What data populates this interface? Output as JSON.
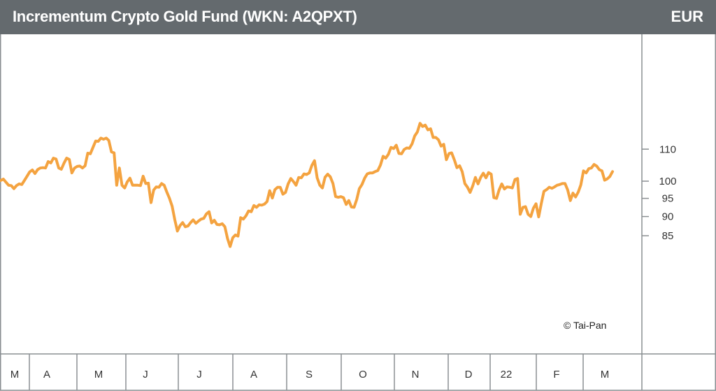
{
  "header": {
    "title": "Incrementum Crypto Gold Fund (WKN: A2QPXT)",
    "currency": "EUR"
  },
  "copyright": "© Tai-Pan",
  "colors": {
    "line": "#f4a340",
    "header": "#646a6e",
    "axis": "#8a8f92"
  },
  "chart_data": {
    "type": "line",
    "title": "Incrementum Crypto Gold Fund (WKN: A2QPXT)",
    "ylabel": "EUR",
    "y_scale": "log",
    "y_ticks": [
      85,
      90,
      95,
      100,
      110
    ],
    "ylim": [
      81,
      123
    ],
    "x_tick_labels": [
      "M",
      "A",
      "M",
      "J",
      "J",
      "A",
      "S",
      "O",
      "N",
      "D",
      "22",
      "F",
      "M"
    ],
    "grid": false,
    "series": [
      {
        "values": [
          100.2,
          100.6,
          99.7,
          98.8,
          98.7,
          97.8,
          98.7,
          99.2,
          99.0,
          100.2,
          101.5,
          102.8,
          103.4,
          102.3,
          103.5,
          104.0,
          104.1,
          104.0,
          106.0,
          105.6,
          107.1,
          106.8,
          104.0,
          103.6,
          105.5,
          107.1,
          106.7,
          102.5,
          104.0,
          104.5,
          104.6,
          104.0,
          104.7,
          108.7,
          108.5,
          110.6,
          112.7,
          112.6,
          113.7,
          113.3,
          113.7,
          112.9,
          109.1,
          108.8,
          98.8,
          104.0,
          98.8,
          98.0,
          99.8,
          100.9,
          98.8,
          98.8,
          98.8,
          98.7,
          101.5,
          99.3,
          99.4,
          93.8,
          97.4,
          98.3,
          98.2,
          99.3,
          98.8,
          96.8,
          95.0,
          92.8,
          89.2,
          86.2,
          87.6,
          88.4,
          87.3,
          87.5,
          88.4,
          89.1,
          88.2,
          88.8,
          89.3,
          89.5,
          90.7,
          91.3,
          88.3,
          89.0,
          87.9,
          87.8,
          88.1,
          87.3,
          84.3,
          82.3,
          84.5,
          85.2,
          84.9,
          89.7,
          89.3,
          90.2,
          91.5,
          91.3,
          93.0,
          92.5,
          93.2,
          93.1,
          93.4,
          94.1,
          97.2,
          95.1,
          97.5,
          98.2,
          98.2,
          96.2,
          96.7,
          99.2,
          100.8,
          99.9,
          98.8,
          101.1,
          101.0,
          102.2,
          102.0,
          102.5,
          104.8,
          106.3,
          101.0,
          98.8,
          98.0,
          101.2,
          102.1,
          101.3,
          99.3,
          95.5,
          95.3,
          95.5,
          95.2,
          93.3,
          94.4,
          92.6,
          92.5,
          94.7,
          97.8,
          99.0,
          100.9,
          102.2,
          102.5,
          102.5,
          102.9,
          103.2,
          104.9,
          107.7,
          107.1,
          108.3,
          110.6,
          110.2,
          111.3,
          108.6,
          108.5,
          109.9,
          110.4,
          110.3,
          111.8,
          114.4,
          115.8,
          118.8,
          117.7,
          118.2,
          116.5,
          116.9,
          113.9,
          113.9,
          113.1,
          111.0,
          111.6,
          106.6,
          108.6,
          108.8,
          106.6,
          104.1,
          104.7,
          102.9,
          99.3,
          98.2,
          96.7,
          98.6,
          101.1,
          99.2,
          101.1,
          102.4,
          101.0,
          102.6,
          102.1,
          95.2,
          95.0,
          97.4,
          99.2,
          97.7,
          98.3,
          98.2,
          98.0,
          100.5,
          100.8,
          90.6,
          92.5,
          92.7,
          90.6,
          90.0,
          92.3,
          93.5,
          89.9,
          93.6,
          97.0,
          97.5,
          98.2,
          97.9,
          98.3,
          98.8,
          99.0,
          99.3,
          99.3,
          97.4,
          94.4,
          96.5,
          95.4,
          96.8,
          98.9,
          103.1,
          102.5,
          103.8,
          104.0,
          105.1,
          104.6,
          103.5,
          103.1,
          100.3,
          100.7,
          101.4,
          102.9
        ]
      }
    ]
  }
}
